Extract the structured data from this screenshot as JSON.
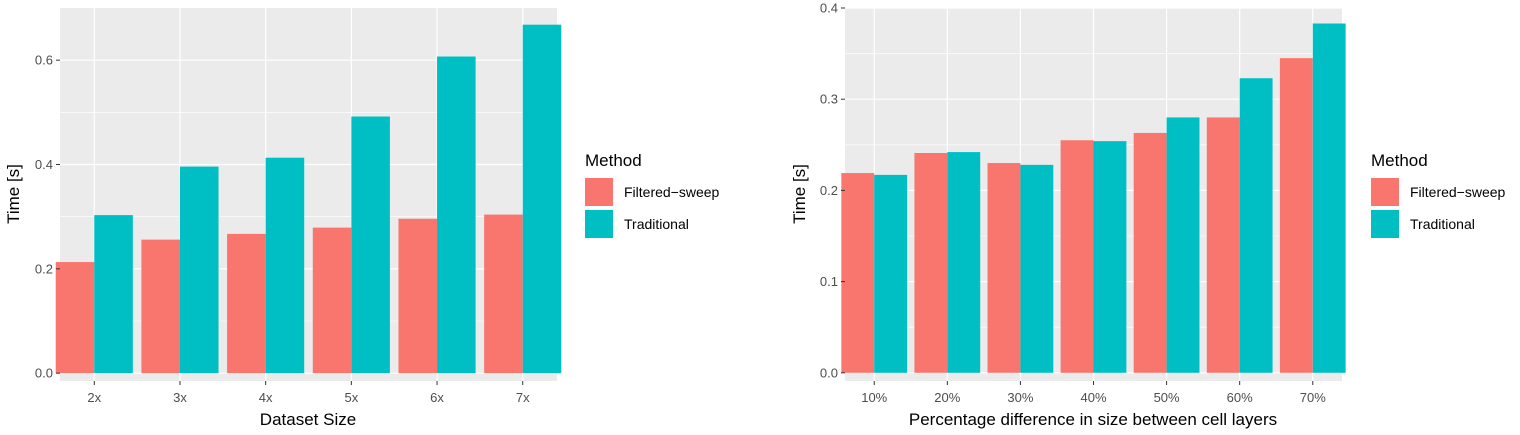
{
  "colors": {
    "Filtered-sweep": "#F8766D",
    "Traditional": "#00BFC4",
    "panel": "#EBEBEB",
    "grid": "#FFFFFF"
  },
  "chart_data": [
    {
      "type": "bar",
      "xlabel": "Dataset Size",
      "ylabel": "Time [s]",
      "categories": [
        "2x",
        "3x",
        "4x",
        "5x",
        "6x",
        "7x"
      ],
      "series": [
        {
          "name": "Filtered−sweep",
          "values": [
            0.213,
            0.256,
            0.267,
            0.279,
            0.296,
            0.304
          ]
        },
        {
          "name": "Traditional",
          "values": [
            0.303,
            0.396,
            0.413,
            0.492,
            0.607,
            0.668
          ]
        }
      ],
      "ylim": [
        -0.015,
        0.7
      ],
      "yticks": [
        0.0,
        0.2,
        0.4,
        0.6
      ],
      "ytick_labels": [
        "0.0",
        "0.2",
        "0.4",
        "0.6"
      ],
      "grid": true,
      "legend": {
        "title": "Method",
        "placement": "right",
        "labels": [
          "Filtered−sweep",
          "Traditional"
        ]
      }
    },
    {
      "type": "bar",
      "xlabel": "Percentage difference in size between cell layers",
      "ylabel": "Time [s]",
      "categories": [
        "10%",
        "20%",
        "30%",
        "40%",
        "50%",
        "60%",
        "70%"
      ],
      "series": [
        {
          "name": "Filtered−sweep",
          "values": [
            0.219,
            0.241,
            0.23,
            0.255,
            0.263,
            0.28,
            0.345
          ]
        },
        {
          "name": "Traditional",
          "values": [
            0.217,
            0.242,
            0.228,
            0.254,
            0.28,
            0.323,
            0.383
          ]
        }
      ],
      "ylim": [
        -0.009,
        0.4
      ],
      "yticks": [
        0.0,
        0.1,
        0.2,
        0.3,
        0.4
      ],
      "ytick_labels": [
        "0.0",
        "0.1",
        "0.2",
        "0.3",
        "0.4"
      ],
      "grid": true,
      "legend": {
        "title": "Method",
        "placement": "right",
        "labels": [
          "Filtered−sweep",
          "Traditional"
        ]
      }
    }
  ]
}
